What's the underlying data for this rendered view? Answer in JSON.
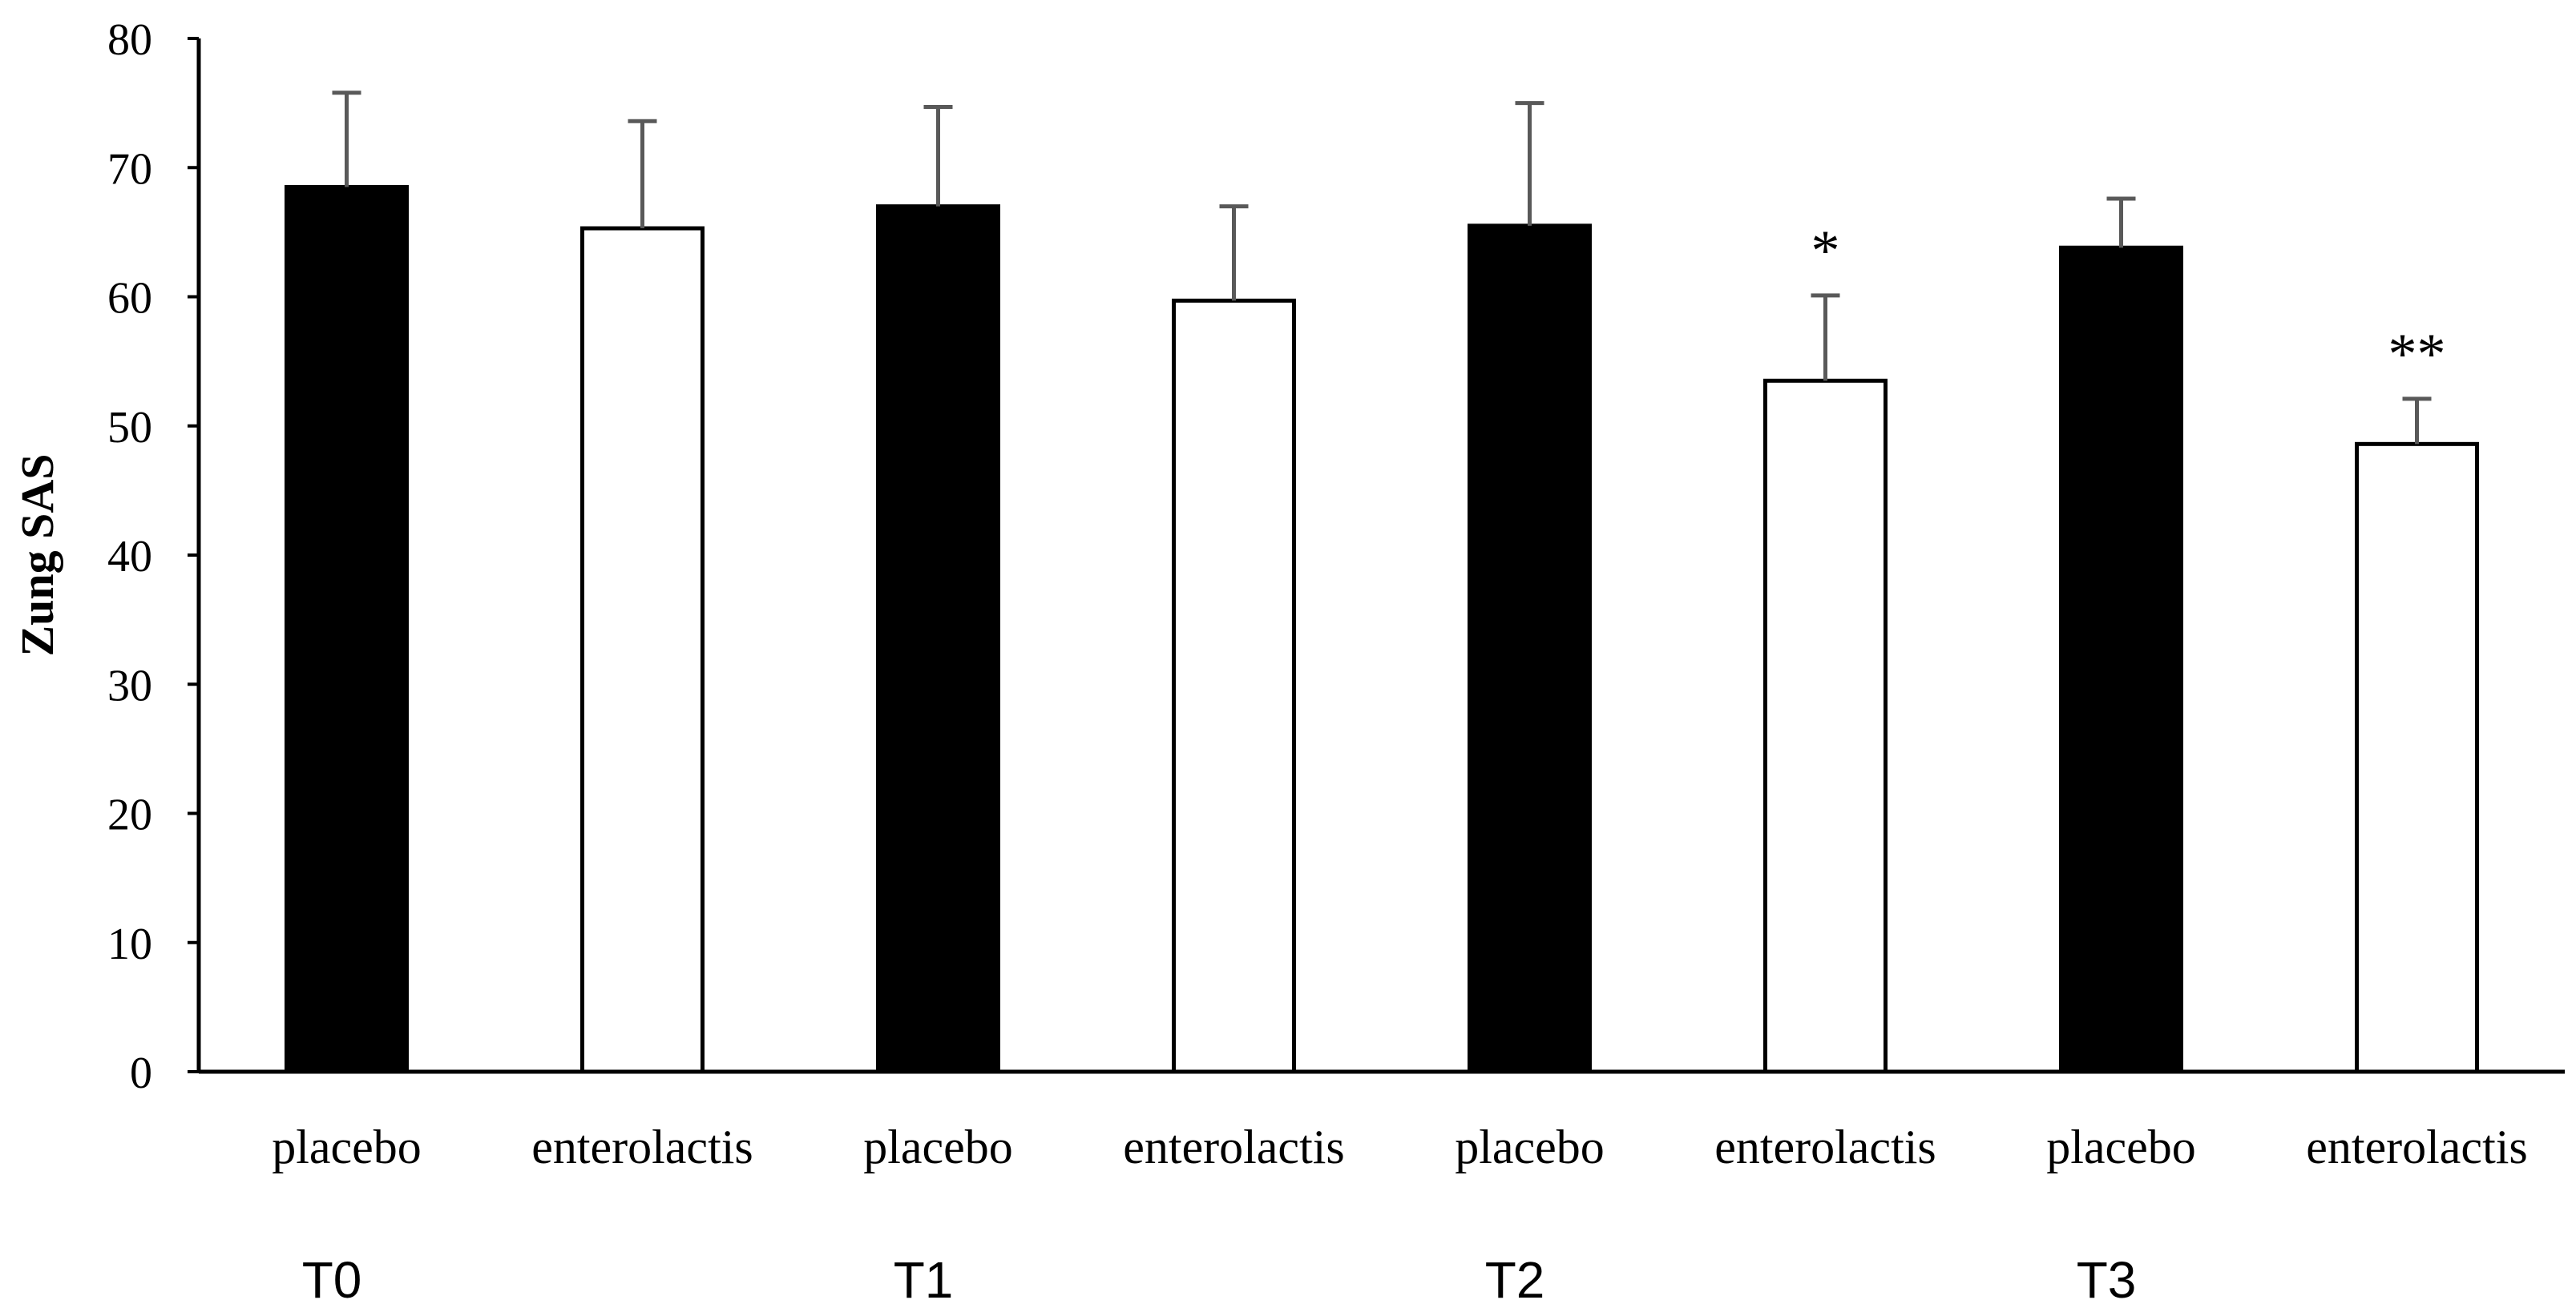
{
  "chart_data": {
    "type": "bar",
    "title": "",
    "xlabel": "",
    "ylabel": "Zung SAS",
    "ylim": [
      0,
      80
    ],
    "yticks": [
      0,
      10,
      20,
      30,
      40,
      50,
      60,
      70,
      80
    ],
    "grid": false,
    "groups": [
      {
        "label": "T0",
        "bars": [
          {
            "category": "placebo",
            "value": 68.5,
            "error": 7.3,
            "significance": ""
          },
          {
            "category": "enterolactis",
            "value": 65.3,
            "error": 8.3,
            "significance": ""
          }
        ]
      },
      {
        "label": "T1",
        "bars": [
          {
            "category": "placebo",
            "value": 67.0,
            "error": 7.7,
            "significance": ""
          },
          {
            "category": "enterolactis",
            "value": 59.7,
            "error": 7.3,
            "significance": ""
          }
        ]
      },
      {
        "label": "T2",
        "bars": [
          {
            "category": "placebo",
            "value": 65.5,
            "error": 9.5,
            "significance": ""
          },
          {
            "category": "enterolactis",
            "value": 53.5,
            "error": 6.6,
            "significance": "*"
          }
        ]
      },
      {
        "label": "T3",
        "bars": [
          {
            "category": "placebo",
            "value": 63.8,
            "error": 3.8,
            "significance": ""
          },
          {
            "category": "enterolactis",
            "value": 48.6,
            "error": 3.5,
            "significance": "**"
          }
        ]
      }
    ],
    "series_colors": {
      "placebo": "#000000",
      "enterolactis": "#ffffff"
    },
    "error_bar_color": "#595959"
  }
}
